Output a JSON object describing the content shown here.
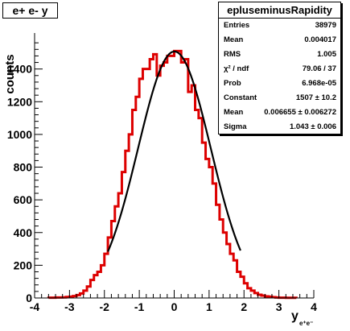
{
  "histogram_title": "e+ e- y",
  "chart_data": {
    "type": "histogram",
    "xlabel": "y",
    "xlabel_sub": "e+e-",
    "ylabel": "counts",
    "xlim": [
      -4,
      4
    ],
    "ylim": [
      0,
      1620
    ],
    "x_ticks": [
      -4,
      -3,
      -2,
      -1,
      0,
      1,
      2,
      3,
      4
    ],
    "y_ticks": [
      0,
      200,
      400,
      600,
      800,
      1000,
      1200,
      1400
    ],
    "bin_width": 0.1,
    "bin_low_edges": [
      -3.6,
      -3.5,
      -3.4,
      -3.3,
      -3.2,
      -3.1,
      -3.0,
      -2.9,
      -2.8,
      -2.7,
      -2.6,
      -2.5,
      -2.4,
      -2.3,
      -2.2,
      -2.1,
      -2.0,
      -1.9,
      -1.8,
      -1.7,
      -1.6,
      -1.5,
      -1.4,
      -1.3,
      -1.2,
      -1.1,
      -1.0,
      -0.9,
      -0.8,
      -0.7,
      -0.6,
      -0.5,
      -0.4,
      -0.3,
      -0.2,
      -0.1,
      0.0,
      0.1,
      0.2,
      0.3,
      0.4,
      0.5,
      0.6,
      0.7,
      0.8,
      0.9,
      1.0,
      1.1,
      1.2,
      1.3,
      1.4,
      1.5,
      1.6,
      1.7,
      1.8,
      1.9,
      2.0,
      2.1,
      2.2,
      2.3,
      2.4,
      2.5,
      2.6,
      2.7,
      2.8,
      2.9,
      3.0,
      3.1,
      3.2,
      3.3,
      3.4
    ],
    "counts": [
      2,
      2,
      3,
      3,
      4,
      6,
      8,
      12,
      18,
      28,
      45,
      70,
      110,
      140,
      160,
      200,
      270,
      370,
      470,
      560,
      640,
      770,
      900,
      1000,
      1150,
      1230,
      1340,
      1400,
      1400,
      1460,
      1490,
      1360,
      1420,
      1440,
      1480,
      1480,
      1510,
      1510,
      1440,
      1460,
      1260,
      1300,
      1150,
      1100,
      950,
      850,
      800,
      700,
      570,
      480,
      400,
      330,
      270,
      230,
      160,
      130,
      90,
      60,
      45,
      30,
      20,
      15,
      10,
      8,
      5,
      3,
      2,
      2,
      1,
      1,
      1
    ],
    "series": [
      {
        "name": "histogram",
        "color": "#dd0000"
      },
      {
        "name": "gaussian fit",
        "color": "#000000",
        "fit_range": [
          -1.9,
          1.9
        ]
      }
    ]
  },
  "stats": {
    "name": "epluseminusRapidity",
    "rows": [
      {
        "label": "Entries",
        "value": "38979"
      },
      {
        "label": "Mean",
        "value": "0.004017"
      },
      {
        "label": "RMS",
        "value": "1.005"
      },
      {
        "label": "χ² / ndf",
        "value": "79.06 / 37"
      },
      {
        "label": "Prob",
        "value": "6.968e-05"
      },
      {
        "label": "Constant",
        "value": "1507 ± 10.2"
      },
      {
        "label": "Mean",
        "value": "0.006655 ± 0.006272"
      },
      {
        "label": "Sigma",
        "value": "1.043 ± 0.006"
      }
    ]
  }
}
